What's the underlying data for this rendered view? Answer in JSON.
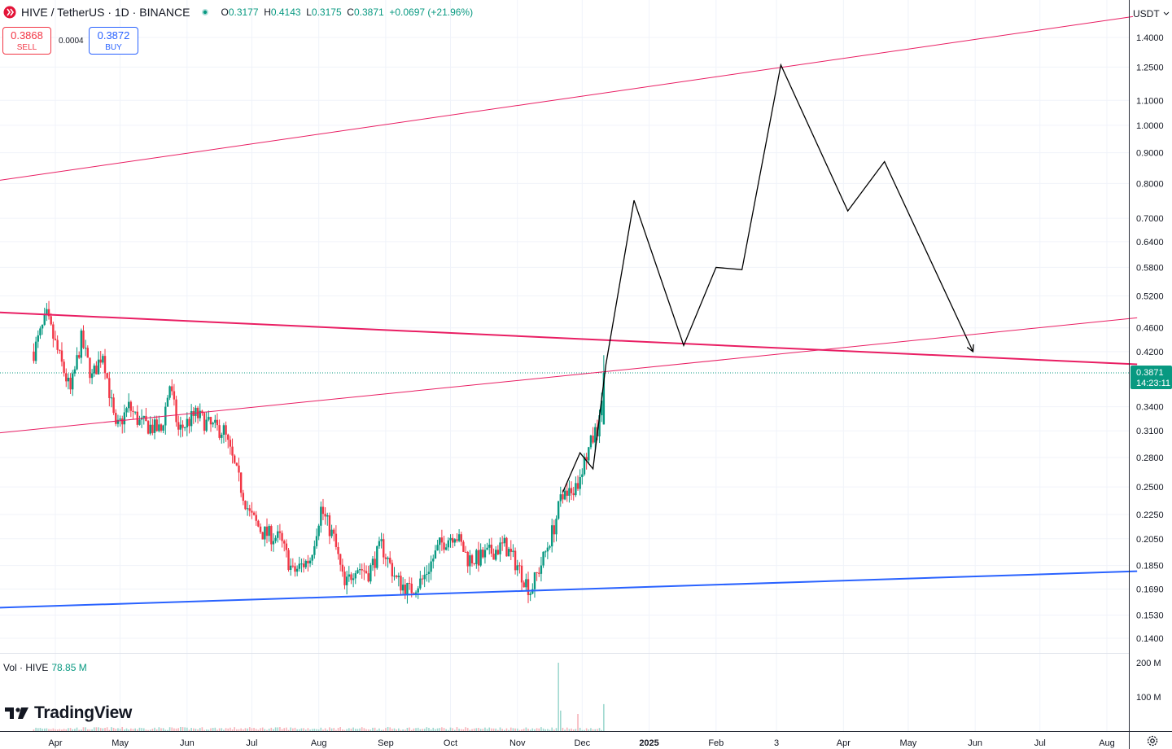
{
  "header": {
    "symbol_title": "HIVE / TetherUS · 1D · BINANCE",
    "open_label": "O",
    "open": "0.3177",
    "high_label": "H",
    "high": "0.4143",
    "low_label": "L",
    "low": "0.3175",
    "close_label": "C",
    "close": "0.3871",
    "change": "+0.0697 (+21.96%)"
  },
  "trade": {
    "sell_price": "0.3868",
    "sell_label": "SELL",
    "spread": "0.0004",
    "buy_price": "0.3872",
    "buy_label": "BUY"
  },
  "volume": {
    "label": "Vol · HIVE",
    "value": "78.85 M"
  },
  "currency": "USDT",
  "brand": "TradingView",
  "price_badge": {
    "price": "0.3871",
    "countdown": "14:23:11"
  },
  "colors": {
    "up": "#089981",
    "down": "#f23645",
    "trendline": "#e91e63",
    "support": "#2962ff",
    "projection": "#000000",
    "grid": "#f0f3fa"
  },
  "icons": [
    "hive-logo-icon",
    "market-status-dot-icon",
    "chevron-down-icon",
    "settings-icon",
    "tradingview-logo-icon"
  ],
  "chart_data": {
    "type": "candlestick",
    "title": "HIVE / TetherUS · 1D · BINANCE",
    "y_scale": "log",
    "y_ticks": [
      1.4,
      1.25,
      1.1,
      1.0,
      0.9,
      0.8,
      0.7,
      0.64,
      0.58,
      0.52,
      0.46,
      0.42,
      0.34,
      0.31,
      0.28,
      0.25,
      0.225,
      0.205,
      0.185,
      0.169,
      0.153,
      0.14
    ],
    "y_tick_labels": [
      "1.4000",
      "1.2500",
      "1.1000",
      "1.0000",
      "0.9000",
      "0.8000",
      "0.7000",
      "0.6400",
      "0.5800",
      "0.5200",
      "0.4600",
      "0.4200",
      "0.3400",
      "0.3100",
      "0.2800",
      "0.2500",
      "0.2250",
      "0.2050",
      "0.1850",
      "0.1690",
      "0.1530",
      "0.1400"
    ],
    "x_ticks": [
      "Apr",
      "May",
      "Jun",
      "Jul",
      "Aug",
      "Sep",
      "Oct",
      "Nov",
      "Dec",
      "2025",
      "Feb",
      "3",
      "Apr",
      "May",
      "Jun",
      "Jul",
      "Aug"
    ],
    "x_tick_dates": [
      "2024-04-01",
      "2024-05-01",
      "2024-06-01",
      "2024-07-01",
      "2024-08-01",
      "2024-09-01",
      "2024-10-01",
      "2024-11-01",
      "2024-12-01",
      "2025-01-01",
      "2025-02-01",
      "2025-03-01",
      "2025-04-01",
      "2025-05-01",
      "2025-06-01",
      "2025-07-01",
      "2025-08-01"
    ],
    "volume_ticks": [
      "200 M",
      "100 M"
    ],
    "volume_tick_values": [
      200,
      100
    ],
    "last_price": 0.3871,
    "price_path": [
      [
        "2024-03-22",
        0.42
      ],
      [
        "2024-03-28",
        0.48
      ],
      [
        "2024-04-03",
        0.41
      ],
      [
        "2024-04-08",
        0.36
      ],
      [
        "2024-04-13",
        0.44
      ],
      [
        "2024-04-18",
        0.38
      ],
      [
        "2024-04-23",
        0.42
      ],
      [
        "2024-04-29",
        0.31
      ],
      [
        "2024-05-05",
        0.34
      ],
      [
        "2024-05-10",
        0.32
      ],
      [
        "2024-05-15",
        0.315
      ],
      [
        "2024-05-20",
        0.31
      ],
      [
        "2024-05-24",
        0.37
      ],
      [
        "2024-05-28",
        0.31
      ],
      [
        "2024-06-05",
        0.33
      ],
      [
        "2024-06-12",
        0.315
      ],
      [
        "2024-06-18",
        0.31
      ],
      [
        "2024-06-23",
        0.27
      ],
      [
        "2024-06-30",
        0.225
      ],
      [
        "2024-07-06",
        0.21
      ],
      [
        "2024-07-14",
        0.205
      ],
      [
        "2024-07-20",
        0.18
      ],
      [
        "2024-07-28",
        0.19
      ],
      [
        "2024-08-02",
        0.23
      ],
      [
        "2024-08-08",
        0.205
      ],
      [
        "2024-08-13",
        0.17
      ],
      [
        "2024-08-18",
        0.185
      ],
      [
        "2024-08-24",
        0.18
      ],
      [
        "2024-08-30",
        0.2
      ],
      [
        "2024-09-06",
        0.175
      ],
      [
        "2024-09-12",
        0.168
      ],
      [
        "2024-09-18",
        0.175
      ],
      [
        "2024-09-26",
        0.2
      ],
      [
        "2024-10-03",
        0.21
      ],
      [
        "2024-10-09",
        0.19
      ],
      [
        "2024-10-14",
        0.19
      ],
      [
        "2024-10-20",
        0.195
      ],
      [
        "2024-10-26",
        0.2
      ],
      [
        "2024-11-01",
        0.185
      ],
      [
        "2024-11-07",
        0.168
      ],
      [
        "2024-11-13",
        0.19
      ],
      [
        "2024-11-18",
        0.215
      ],
      [
        "2024-11-22",
        0.245
      ],
      [
        "2024-11-27",
        0.24
      ],
      [
        "2024-12-01",
        0.27
      ],
      [
        "2024-12-05",
        0.295
      ],
      [
        "2024-12-09",
        0.32
      ],
      [
        "2024-12-11",
        0.3871
      ]
    ],
    "volume": [
      [
        "2024-11-20",
        200
      ],
      [
        "2024-11-21",
        60
      ],
      [
        "2024-11-29",
        50
      ],
      [
        "2024-12-11",
        78.85
      ]
    ],
    "trendlines": [
      {
        "color": "#e91e63",
        "width": 1,
        "from": [
          "2024-02-25",
          0.8
        ],
        "to": [
          "2025-08-15",
          1.52
        ]
      },
      {
        "color": "#e91e63",
        "width": 2,
        "from": [
          "2024-02-25",
          0.49
        ],
        "to": [
          "2025-08-15",
          0.4
        ]
      },
      {
        "color": "#e91e63",
        "width": 1,
        "from": [
          "2024-02-25",
          0.305
        ],
        "to": [
          "2025-08-15",
          0.478
        ]
      },
      {
        "color": "#2962ff",
        "width": 2,
        "from": [
          "2024-02-25",
          0.157
        ],
        "to": [
          "2025-08-15",
          0.181
        ]
      }
    ],
    "projection": [
      [
        "2024-11-22",
        0.245
      ],
      [
        "2024-11-30",
        0.285
      ],
      [
        "2024-12-06",
        0.268
      ],
      [
        "2024-12-12",
        0.4
      ],
      [
        "2024-12-25",
        0.75
      ],
      [
        "2025-01-17",
        0.43
      ],
      [
        "2025-02-01",
        0.58
      ],
      [
        "2025-02-13",
        0.575
      ],
      [
        "2025-03-03",
        1.26
      ],
      [
        "2025-04-03",
        0.72
      ],
      [
        "2025-04-20",
        0.87
      ],
      [
        "2025-05-31",
        0.42
      ]
    ]
  }
}
